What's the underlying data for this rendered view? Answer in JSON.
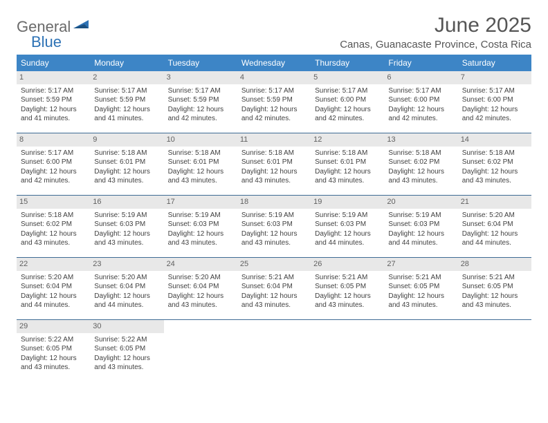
{
  "logo": {
    "text1": "General",
    "text2": "Blue"
  },
  "title": "June 2025",
  "location": "Canas, Guanacaste Province, Costa Rica",
  "colors": {
    "header_bg": "#3d85c6",
    "header_text": "#ffffff",
    "row_border": "#3d6b94",
    "daynum_bg": "#e8e8e8",
    "body_text": "#404040",
    "logo_gray": "#6a6a6a",
    "logo_blue": "#2d72b5",
    "title_color": "#555555"
  },
  "weekday_labels": [
    "Sunday",
    "Monday",
    "Tuesday",
    "Wednesday",
    "Thursday",
    "Friday",
    "Saturday"
  ],
  "weeks": [
    [
      {
        "num": "1",
        "sunrise": "Sunrise: 5:17 AM",
        "sunset": "Sunset: 5:59 PM",
        "daylight": "Daylight: 12 hours and 41 minutes."
      },
      {
        "num": "2",
        "sunrise": "Sunrise: 5:17 AM",
        "sunset": "Sunset: 5:59 PM",
        "daylight": "Daylight: 12 hours and 41 minutes."
      },
      {
        "num": "3",
        "sunrise": "Sunrise: 5:17 AM",
        "sunset": "Sunset: 5:59 PM",
        "daylight": "Daylight: 12 hours and 42 minutes."
      },
      {
        "num": "4",
        "sunrise": "Sunrise: 5:17 AM",
        "sunset": "Sunset: 5:59 PM",
        "daylight": "Daylight: 12 hours and 42 minutes."
      },
      {
        "num": "5",
        "sunrise": "Sunrise: 5:17 AM",
        "sunset": "Sunset: 6:00 PM",
        "daylight": "Daylight: 12 hours and 42 minutes."
      },
      {
        "num": "6",
        "sunrise": "Sunrise: 5:17 AM",
        "sunset": "Sunset: 6:00 PM",
        "daylight": "Daylight: 12 hours and 42 minutes."
      },
      {
        "num": "7",
        "sunrise": "Sunrise: 5:17 AM",
        "sunset": "Sunset: 6:00 PM",
        "daylight": "Daylight: 12 hours and 42 minutes."
      }
    ],
    [
      {
        "num": "8",
        "sunrise": "Sunrise: 5:17 AM",
        "sunset": "Sunset: 6:00 PM",
        "daylight": "Daylight: 12 hours and 42 minutes."
      },
      {
        "num": "9",
        "sunrise": "Sunrise: 5:18 AM",
        "sunset": "Sunset: 6:01 PM",
        "daylight": "Daylight: 12 hours and 43 minutes."
      },
      {
        "num": "10",
        "sunrise": "Sunrise: 5:18 AM",
        "sunset": "Sunset: 6:01 PM",
        "daylight": "Daylight: 12 hours and 43 minutes."
      },
      {
        "num": "11",
        "sunrise": "Sunrise: 5:18 AM",
        "sunset": "Sunset: 6:01 PM",
        "daylight": "Daylight: 12 hours and 43 minutes."
      },
      {
        "num": "12",
        "sunrise": "Sunrise: 5:18 AM",
        "sunset": "Sunset: 6:01 PM",
        "daylight": "Daylight: 12 hours and 43 minutes."
      },
      {
        "num": "13",
        "sunrise": "Sunrise: 5:18 AM",
        "sunset": "Sunset: 6:02 PM",
        "daylight": "Daylight: 12 hours and 43 minutes."
      },
      {
        "num": "14",
        "sunrise": "Sunrise: 5:18 AM",
        "sunset": "Sunset: 6:02 PM",
        "daylight": "Daylight: 12 hours and 43 minutes."
      }
    ],
    [
      {
        "num": "15",
        "sunrise": "Sunrise: 5:18 AM",
        "sunset": "Sunset: 6:02 PM",
        "daylight": "Daylight: 12 hours and 43 minutes."
      },
      {
        "num": "16",
        "sunrise": "Sunrise: 5:19 AM",
        "sunset": "Sunset: 6:03 PM",
        "daylight": "Daylight: 12 hours and 43 minutes."
      },
      {
        "num": "17",
        "sunrise": "Sunrise: 5:19 AM",
        "sunset": "Sunset: 6:03 PM",
        "daylight": "Daylight: 12 hours and 43 minutes."
      },
      {
        "num": "18",
        "sunrise": "Sunrise: 5:19 AM",
        "sunset": "Sunset: 6:03 PM",
        "daylight": "Daylight: 12 hours and 43 minutes."
      },
      {
        "num": "19",
        "sunrise": "Sunrise: 5:19 AM",
        "sunset": "Sunset: 6:03 PM",
        "daylight": "Daylight: 12 hours and 44 minutes."
      },
      {
        "num": "20",
        "sunrise": "Sunrise: 5:19 AM",
        "sunset": "Sunset: 6:03 PM",
        "daylight": "Daylight: 12 hours and 44 minutes."
      },
      {
        "num": "21",
        "sunrise": "Sunrise: 5:20 AM",
        "sunset": "Sunset: 6:04 PM",
        "daylight": "Daylight: 12 hours and 44 minutes."
      }
    ],
    [
      {
        "num": "22",
        "sunrise": "Sunrise: 5:20 AM",
        "sunset": "Sunset: 6:04 PM",
        "daylight": "Daylight: 12 hours and 44 minutes."
      },
      {
        "num": "23",
        "sunrise": "Sunrise: 5:20 AM",
        "sunset": "Sunset: 6:04 PM",
        "daylight": "Daylight: 12 hours and 44 minutes."
      },
      {
        "num": "24",
        "sunrise": "Sunrise: 5:20 AM",
        "sunset": "Sunset: 6:04 PM",
        "daylight": "Daylight: 12 hours and 43 minutes."
      },
      {
        "num": "25",
        "sunrise": "Sunrise: 5:21 AM",
        "sunset": "Sunset: 6:04 PM",
        "daylight": "Daylight: 12 hours and 43 minutes."
      },
      {
        "num": "26",
        "sunrise": "Sunrise: 5:21 AM",
        "sunset": "Sunset: 6:05 PM",
        "daylight": "Daylight: 12 hours and 43 minutes."
      },
      {
        "num": "27",
        "sunrise": "Sunrise: 5:21 AM",
        "sunset": "Sunset: 6:05 PM",
        "daylight": "Daylight: 12 hours and 43 minutes."
      },
      {
        "num": "28",
        "sunrise": "Sunrise: 5:21 AM",
        "sunset": "Sunset: 6:05 PM",
        "daylight": "Daylight: 12 hours and 43 minutes."
      }
    ],
    [
      {
        "num": "29",
        "sunrise": "Sunrise: 5:22 AM",
        "sunset": "Sunset: 6:05 PM",
        "daylight": "Daylight: 12 hours and 43 minutes."
      },
      {
        "num": "30",
        "sunrise": "Sunrise: 5:22 AM",
        "sunset": "Sunset: 6:05 PM",
        "daylight": "Daylight: 12 hours and 43 minutes."
      },
      null,
      null,
      null,
      null,
      null
    ]
  ]
}
